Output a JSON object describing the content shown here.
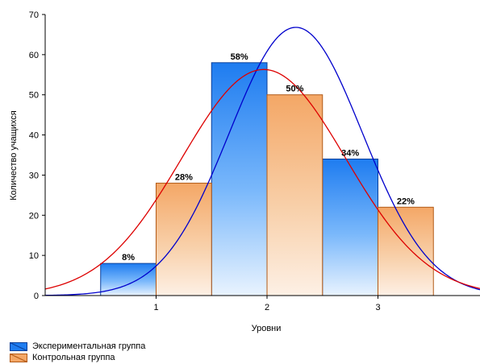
{
  "chart_data": {
    "type": "bar",
    "title": "",
    "xlabel": "Уровни",
    "ylabel": "Количество учащихся",
    "ylim": [
      0,
      70
    ],
    "xlim": [
      0.0,
      3.92
    ],
    "yticks": [
      0,
      10,
      20,
      30,
      40,
      50,
      60,
      70
    ],
    "xticks": [
      1,
      2,
      3
    ],
    "grid": false,
    "legend": "bottom-left",
    "categories": [
      "1",
      "2",
      "3"
    ],
    "series": [
      {
        "name": "Экспериментальная группа",
        "color": "#1e6fe0",
        "bars": [
          {
            "x0": 0.5,
            "x1": 1.0,
            "value": 8,
            "label": "8%"
          },
          {
            "x0": 1.5,
            "x1": 2.0,
            "value": 58,
            "label": "58%"
          },
          {
            "x0": 2.5,
            "x1": 3.0,
            "value": 34,
            "label": "34%"
          }
        ],
        "curve": {
          "type": "normal",
          "mean": 2.26,
          "peak": 66.8,
          "sd": 0.6,
          "color": "#0000cc"
        }
      },
      {
        "name": "Контрольная группа",
        "color": "#e8883a",
        "bars": [
          {
            "x0": 1.0,
            "x1": 1.5,
            "value": 28,
            "label": "28%"
          },
          {
            "x0": 2.0,
            "x1": 2.5,
            "value": 50,
            "label": "50%"
          },
          {
            "x0": 3.0,
            "x1": 3.5,
            "value": 22,
            "label": "22%"
          }
        ],
        "curve": {
          "type": "normal",
          "mean": 1.97,
          "peak": 56.3,
          "sd": 0.74,
          "color": "#dd0000"
        }
      }
    ]
  }
}
